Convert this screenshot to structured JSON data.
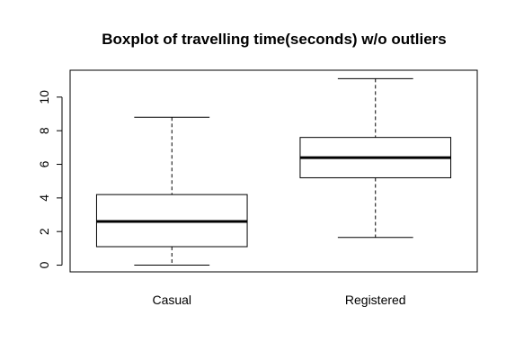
{
  "chart_data": {
    "type": "boxplot",
    "title": "Boxplot of travelling time(seconds) w/o outliers",
    "xlabel": "",
    "ylabel": "",
    "ylim": [
      -0.4,
      11.6
    ],
    "yticks": [
      0,
      2,
      4,
      6,
      8,
      10
    ],
    "categories": [
      "Casual",
      "Registered"
    ],
    "boxes": [
      {
        "category": "Casual",
        "min": 0.0,
        "q1": 1.1,
        "median": 2.6,
        "q3": 4.2,
        "max": 8.8
      },
      {
        "category": "Registered",
        "min": 1.65,
        "q1": 5.2,
        "median": 6.4,
        "q3": 7.6,
        "max": 11.1
      }
    ],
    "grid": false,
    "legend": "none",
    "colors": {
      "box_fill": "#ffffff",
      "stroke": "#000000"
    }
  }
}
